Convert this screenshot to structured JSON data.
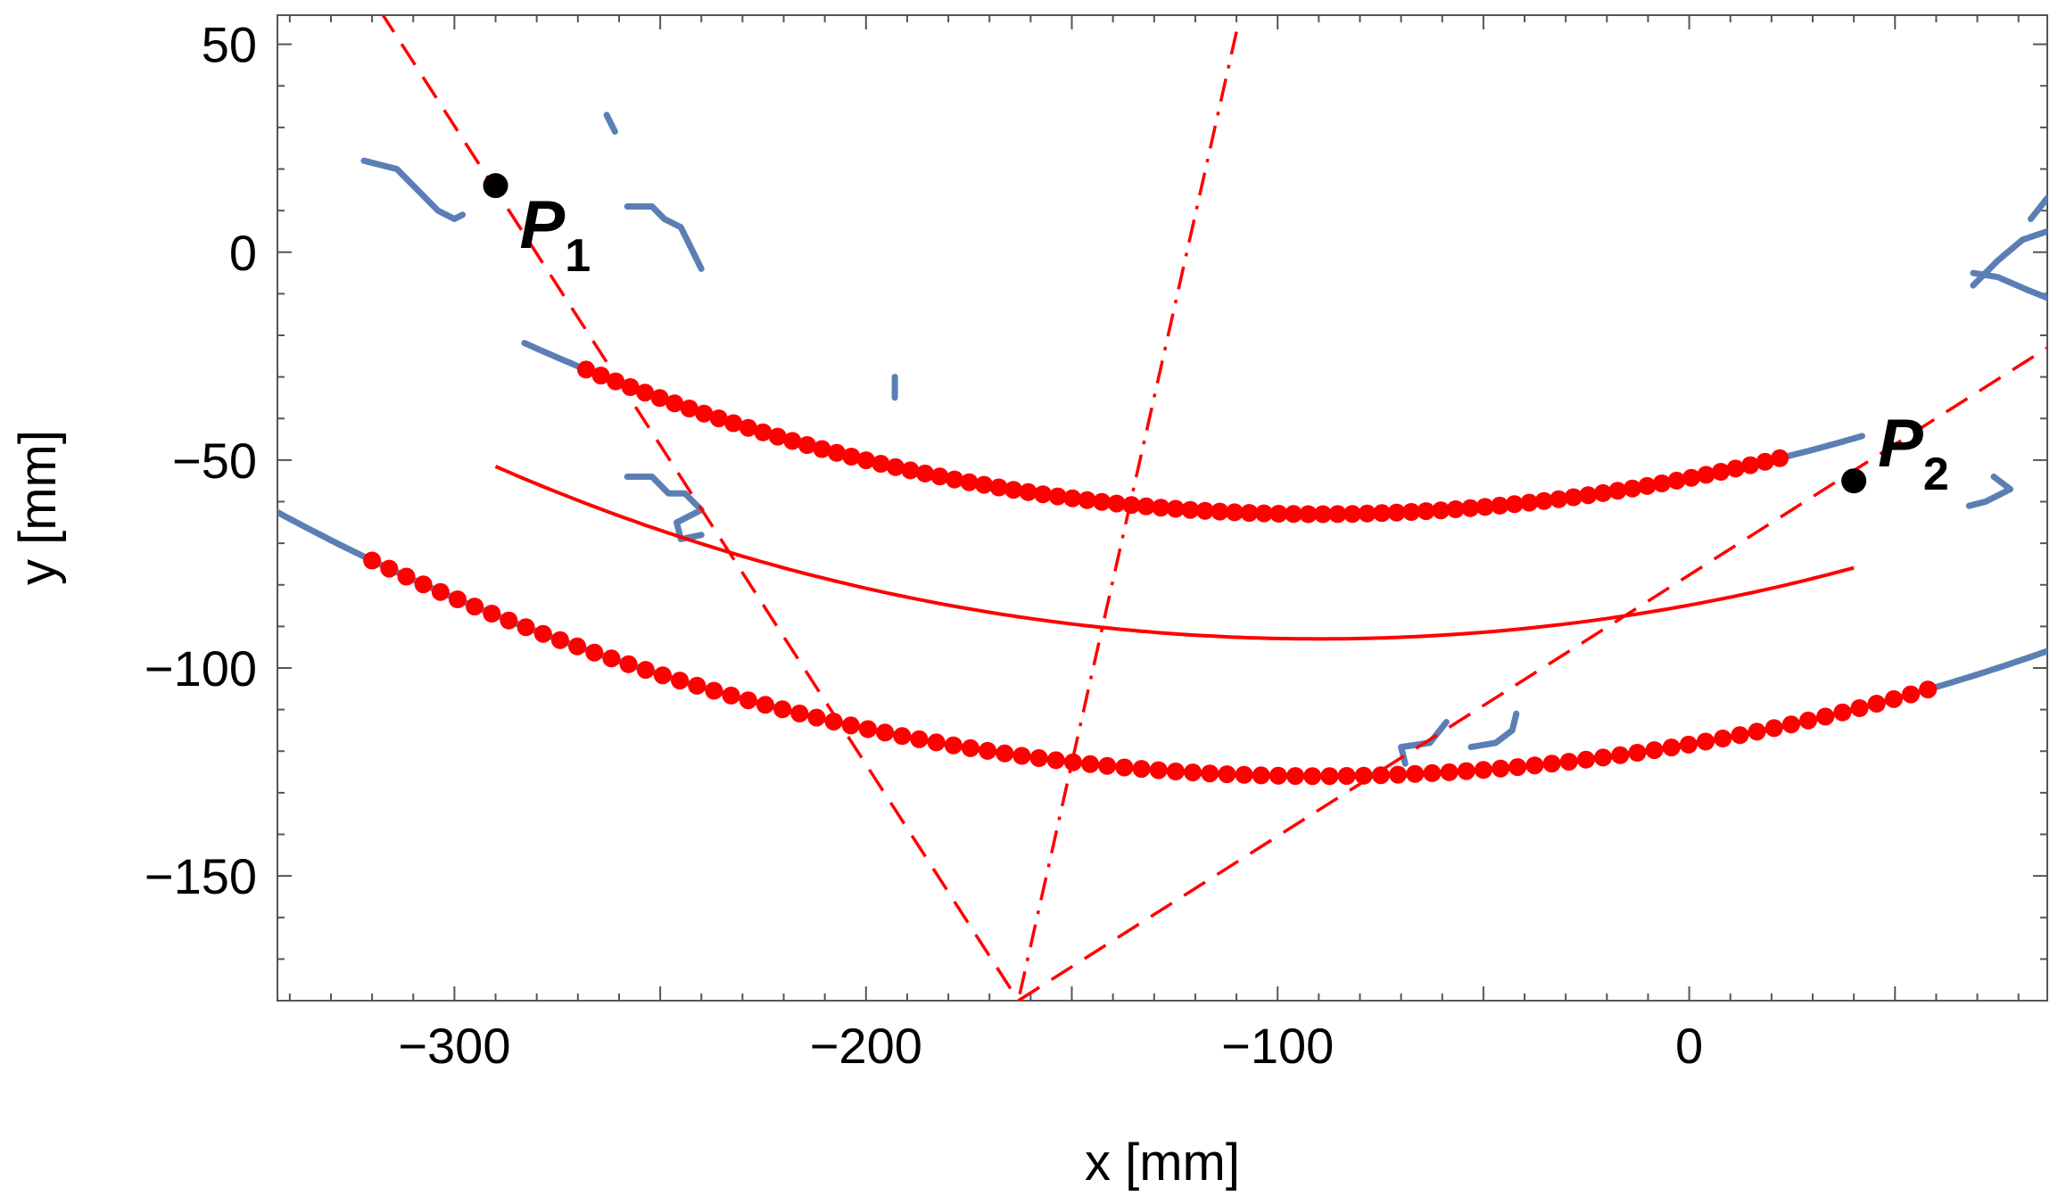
{
  "chart_data": {
    "type": "scatter",
    "xlabel": "x [mm]",
    "ylabel": "y [mm]",
    "xlim": [
      -343,
      87
    ],
    "ylim": [
      -180,
      57
    ],
    "xticks": [
      -300,
      -200,
      -100,
      0
    ],
    "xtick_labels": [
      "−300",
      "−200",
      "−100",
      "0"
    ],
    "yticks": [
      50,
      0,
      -50,
      -100,
      -150
    ],
    "ytick_labels": [
      "50",
      "0",
      "−50",
      "−100",
      "−150"
    ],
    "colors": {
      "fitted": "#ff0000",
      "measured": "#5b7fb5",
      "point": "#000000"
    },
    "points": [
      {
        "name": "P",
        "sub": "1",
        "x": -290,
        "y": 16
      },
      {
        "name": "P",
        "sub": "2",
        "x": 40,
        "y": -55
      }
    ],
    "center_line": {
      "name": "fitted trajectory",
      "center": [
        -90,
        410
      ],
      "radius": 503,
      "x_from": -290,
      "x_to": 40
    },
    "dashed_lines": [
      {
        "from": [
          -318,
          58
        ],
        "to": [
          -163,
          -180
        ]
      },
      {
        "from": [
          -163,
          -180
        ],
        "to": [
          87,
          -23
        ]
      }
    ],
    "dashdot_line": {
      "from": [
        -110,
        53
      ],
      "to": [
        -163,
        -180
      ]
    },
    "series": [
      {
        "name": "upper boundary (fitted)",
        "style": "red-dots",
        "center": [
          -90,
          410
        ],
        "radius": 473,
        "x_from": -268,
        "x_to": 22,
        "count": 82
      },
      {
        "name": "lower boundary (fitted)",
        "style": "red-dots",
        "center": [
          -90,
          410
        ],
        "radius": 536,
        "x_from": -320,
        "x_to": 58,
        "count": 92
      }
    ],
    "measured_segments": [
      {
        "name": "upper edge",
        "kind": "arc",
        "center": [
          -90,
          410
        ],
        "radius": 473,
        "x_from": -283,
        "x_to": 42
      },
      {
        "name": "lower edge",
        "kind": "arc",
        "center": [
          -90,
          410
        ],
        "radius": 536,
        "x_from": -343,
        "x_to": 87
      },
      {
        "name": "fragment",
        "kind": "poly",
        "pts": [
          [
            -322,
            22
          ],
          [
            -314,
            20
          ],
          [
            -309,
            15
          ],
          [
            -304,
            10
          ],
          [
            -300,
            8
          ],
          [
            -298,
            9
          ]
        ]
      },
      {
        "name": "fragment",
        "kind": "poly",
        "pts": [
          [
            -258,
            -54
          ],
          [
            -252,
            -54
          ],
          [
            -248,
            -58
          ],
          [
            -244,
            -58
          ],
          [
            -240,
            -62
          ],
          [
            -246,
            -65
          ],
          [
            -245,
            -69
          ],
          [
            -240,
            -68
          ]
        ]
      },
      {
        "name": "fragment",
        "kind": "poly",
        "pts": [
          [
            -263,
            33
          ],
          [
            -261,
            29
          ]
        ]
      },
      {
        "name": "fragment",
        "kind": "poly",
        "pts": [
          [
            -258,
            11
          ],
          [
            -252,
            11
          ],
          [
            -249,
            8
          ],
          [
            -245,
            6
          ],
          [
            -243,
            2
          ],
          [
            -240,
            -4
          ]
        ]
      },
      {
        "name": "fragment",
        "kind": "poly",
        "pts": [
          [
            -193,
            -30
          ],
          [
            -193,
            -35
          ]
        ]
      },
      {
        "name": "fragment",
        "kind": "poly",
        "pts": [
          [
            -59,
            -113
          ],
          [
            -63,
            -118
          ],
          [
            -70,
            -119
          ],
          [
            -69,
            -123
          ]
        ]
      },
      {
        "name": "fragment",
        "kind": "poly",
        "pts": [
          [
            -53,
            -119
          ],
          [
            -47,
            -118
          ],
          [
            -43,
            -115
          ],
          [
            -42,
            -111
          ]
        ]
      },
      {
        "name": "fragment",
        "kind": "poly",
        "pts": [
          [
            69,
            -5
          ],
          [
            75,
            -6
          ],
          [
            82,
            -9
          ],
          [
            87,
            -11
          ]
        ]
      },
      {
        "name": "fragment",
        "kind": "poly",
        "pts": [
          [
            69,
            -8
          ],
          [
            75,
            -2
          ],
          [
            81,
            3
          ],
          [
            87,
            5
          ]
        ]
      },
      {
        "name": "fragment",
        "kind": "poly",
        "pts": [
          [
            83,
            8
          ],
          [
            87,
            13
          ]
        ]
      },
      {
        "name": "fragment",
        "kind": "poly",
        "pts": [
          [
            74,
            -54
          ],
          [
            78,
            -57
          ],
          [
            72,
            -60
          ],
          [
            68,
            -61
          ]
        ]
      }
    ]
  }
}
